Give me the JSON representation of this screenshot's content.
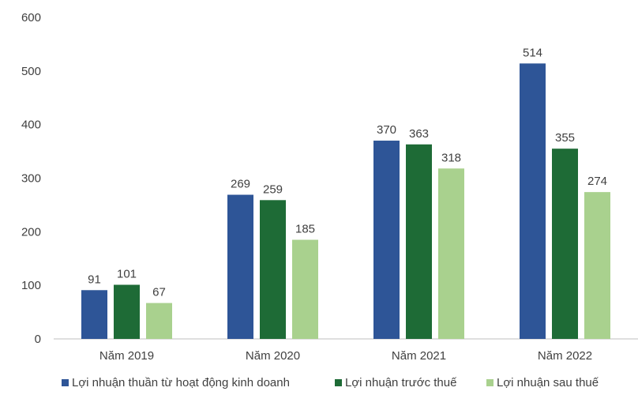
{
  "chart_data": {
    "type": "bar",
    "title": "",
    "xlabel": "",
    "ylabel": "",
    "ylim": [
      0,
      600
    ],
    "yticks": [
      0,
      100,
      200,
      300,
      400,
      500,
      600
    ],
    "grid": false,
    "legend_position": "bottom",
    "categories": [
      "Năm 2019",
      "Năm 2020",
      "Năm 2021",
      "Năm 2022"
    ],
    "series": [
      {
        "name": "Lợi nhuận thuần từ hoạt động kinh doanh",
        "color": "#2e5597",
        "values": [
          91,
          269,
          370,
          514
        ]
      },
      {
        "name": "Lợi nhuận trước thuế",
        "color": "#1e6b36",
        "values": [
          101,
          259,
          363,
          355
        ]
      },
      {
        "name": "Lợi nhuận sau thuế",
        "color": "#a9d18e",
        "values": [
          67,
          185,
          318,
          274
        ]
      }
    ]
  }
}
